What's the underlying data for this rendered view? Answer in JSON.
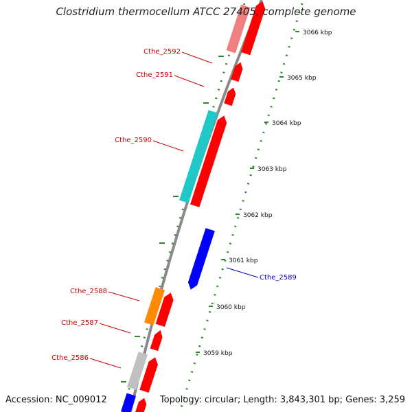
{
  "title": "Clostridium thermocellum ATCC 27405, complete genome",
  "footer": {
    "accession": "Accession: NC_009012",
    "summary": "Topology: circular; Length: 3,843,301 bp; Genes: 3,259"
  },
  "colors": {
    "backbone": "#8a8a8a",
    "tick": "#2a8a2a",
    "tick_label": "#111111",
    "gene_red": "#ff0000",
    "gene_pink": "#f08080",
    "gene_cyan": "#20c8c8",
    "gene_blue": "#0000ff",
    "gene_orange": "#ff8c00",
    "gene_gray": "#c0c0c0",
    "label_red": "#cc0000",
    "label_blue": "#0000bb"
  },
  "scale_labels": [
    "3066 kbp",
    "3065 kbp",
    "3064 kbp",
    "3063 kbp",
    "3062 kbp",
    "3061 kbp",
    "3060 kbp",
    "3059 kbp"
  ],
  "genes": [
    {
      "name": "Cthe_2592",
      "label_color": "label_red"
    },
    {
      "name": "Cthe_2591",
      "label_color": "label_red"
    },
    {
      "name": "Cthe_2590",
      "label_color": "label_red"
    },
    {
      "name": "Cthe_2589",
      "label_color": "label_blue"
    },
    {
      "name": "Cthe_2588",
      "label_color": "label_red"
    },
    {
      "name": "Cthe_2587",
      "label_color": "label_red"
    },
    {
      "name": "Cthe_2586",
      "label_color": "label_red"
    }
  ]
}
